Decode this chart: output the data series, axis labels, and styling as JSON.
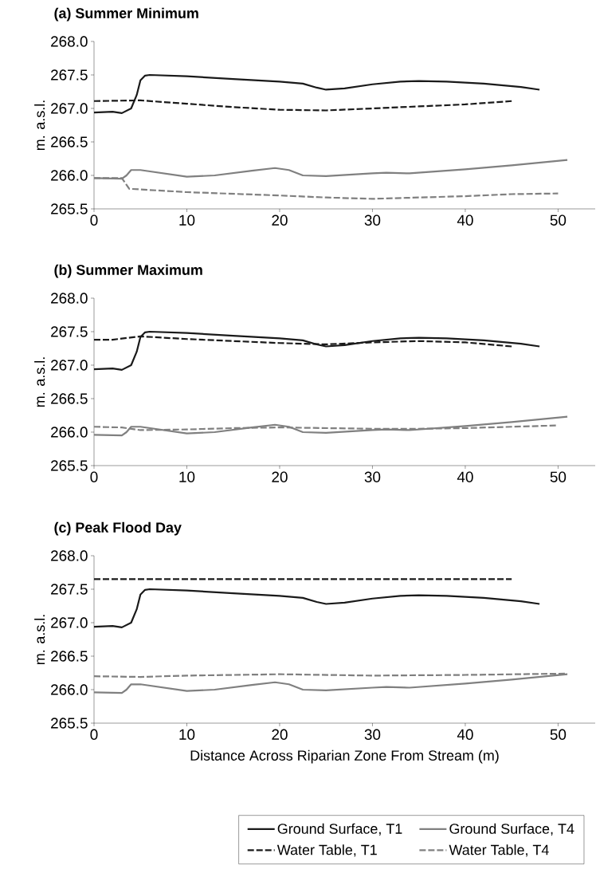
{
  "chart_data": [
    {
      "type": "line",
      "title": "(a) Summer Minimum",
      "ylabel": "m. a.s.l.",
      "xlim": [
        0,
        54
      ],
      "ylim": [
        265.5,
        268
      ],
      "xticks": [
        0,
        10,
        20,
        30,
        40,
        50
      ],
      "yticks": [
        {
          "value": 265.5,
          "label": "265.5"
        },
        {
          "value": 266,
          "label": "266.0"
        },
        {
          "value": 266.5,
          "label": "266.5"
        },
        {
          "value": 267,
          "label": "267.0"
        },
        {
          "value": 267.5,
          "label": "267.5"
        },
        {
          "value": 268,
          "label": "268.0"
        }
      ],
      "grid": false,
      "marker": "none",
      "series": [
        {
          "color": "#1a1a1a",
          "line_style": "solid",
          "x": [
            0,
            2,
            3,
            4,
            4.6,
            5,
            5.5,
            6,
            10,
            15,
            20,
            22.5,
            24,
            25,
            27,
            30,
            33,
            35,
            38,
            42,
            46,
            48
          ],
          "values": [
            266.94,
            266.95,
            266.93,
            267.0,
            267.2,
            267.42,
            267.49,
            267.5,
            267.48,
            267.44,
            267.4,
            267.37,
            267.31,
            267.28,
            267.3,
            267.36,
            267.4,
            267.41,
            267.4,
            267.37,
            267.32,
            267.28
          ]
        },
        {
          "color": "#808080",
          "line_style": "solid",
          "x": [
            0,
            3,
            3.5,
            4,
            5,
            7,
            10,
            13,
            17,
            19.5,
            21,
            22.5,
            25,
            30,
            31.5,
            34,
            40,
            45,
            51
          ],
          "values": [
            265.96,
            265.95,
            266.0,
            266.08,
            266.08,
            266.04,
            265.98,
            266.0,
            266.07,
            266.11,
            266.08,
            266.0,
            265.99,
            266.03,
            266.04,
            266.03,
            266.09,
            266.15,
            266.23
          ]
        },
        {
          "color": "#1a1a1a",
          "line_style": "dashed",
          "x": [
            0,
            5,
            10,
            15,
            20,
            25,
            30,
            35,
            40,
            45
          ],
          "values": [
            267.11,
            267.12,
            267.07,
            267.02,
            266.98,
            266.97,
            267.0,
            267.03,
            267.06,
            267.11
          ]
        },
        {
          "color": "#808080",
          "line_style": "dashed",
          "x": [
            0,
            3,
            3.3,
            3.8,
            10,
            20,
            25,
            30,
            35,
            40,
            45,
            50
          ],
          "values": [
            265.96,
            265.96,
            265.9,
            265.8,
            265.75,
            265.7,
            265.67,
            265.65,
            265.67,
            265.69,
            265.72,
            265.73
          ]
        }
      ]
    },
    {
      "type": "line",
      "title": "(b) Summer Maximum",
      "ylabel": "m. a.s.l.",
      "xlim": [
        0,
        54
      ],
      "ylim": [
        265.5,
        268
      ],
      "xticks": [
        0,
        10,
        20,
        30,
        40,
        50
      ],
      "yticks": [
        {
          "value": 265.5,
          "label": "265.5"
        },
        {
          "value": 266,
          "label": "266.0"
        },
        {
          "value": 266.5,
          "label": "266.5"
        },
        {
          "value": 267,
          "label": "267.0"
        },
        {
          "value": 267.5,
          "label": "267.5"
        },
        {
          "value": 268,
          "label": "268.0"
        }
      ],
      "grid": false,
      "marker": "none",
      "series": [
        {
          "color": "#1a1a1a",
          "line_style": "solid",
          "x": [
            0,
            2,
            3,
            4,
            4.6,
            5,
            5.5,
            6,
            10,
            15,
            20,
            22.5,
            24,
            25,
            27,
            30,
            33,
            35,
            38,
            42,
            46,
            48
          ],
          "values": [
            266.94,
            266.95,
            266.93,
            267.0,
            267.2,
            267.42,
            267.49,
            267.5,
            267.48,
            267.44,
            267.4,
            267.37,
            267.31,
            267.28,
            267.3,
            267.36,
            267.4,
            267.41,
            267.4,
            267.37,
            267.32,
            267.28
          ]
        },
        {
          "color": "#808080",
          "line_style": "solid",
          "x": [
            0,
            3,
            3.5,
            4,
            5,
            7,
            10,
            13,
            17,
            19.5,
            21,
            22.5,
            25,
            30,
            31.5,
            34,
            40,
            45,
            51
          ],
          "values": [
            265.96,
            265.95,
            266.0,
            266.08,
            266.08,
            266.04,
            265.98,
            266.0,
            266.07,
            266.11,
            266.08,
            266.0,
            265.99,
            266.03,
            266.04,
            266.03,
            266.09,
            266.15,
            266.23
          ]
        },
        {
          "color": "#1a1a1a",
          "line_style": "dashed",
          "x": [
            0,
            2,
            5,
            10,
            15,
            20,
            25,
            30,
            35,
            40,
            45
          ],
          "values": [
            267.38,
            267.38,
            267.43,
            267.39,
            267.36,
            267.33,
            267.31,
            267.34,
            267.36,
            267.34,
            267.28
          ]
        },
        {
          "color": "#808080",
          "line_style": "dashed",
          "x": [
            0,
            3,
            5,
            10,
            15,
            20,
            25,
            30,
            35,
            40,
            45,
            50
          ],
          "values": [
            266.08,
            266.07,
            266.03,
            266.04,
            266.06,
            266.07,
            266.06,
            266.05,
            266.05,
            266.06,
            266.08,
            266.1
          ]
        }
      ]
    },
    {
      "type": "line",
      "title": "(c) Peak Flood Day",
      "xlabel": "Distance Across Riparian Zone From Stream (m)",
      "ylabel": "m. a.s.l.",
      "xlim": [
        0,
        54
      ],
      "ylim": [
        265.5,
        268
      ],
      "xticks": [
        0,
        10,
        20,
        30,
        40,
        50
      ],
      "yticks": [
        {
          "value": 265.5,
          "label": "265.5"
        },
        {
          "value": 266,
          "label": "266.0"
        },
        {
          "value": 266.5,
          "label": "266.5"
        },
        {
          "value": 267,
          "label": "267.0"
        },
        {
          "value": 267.5,
          "label": "267.5"
        },
        {
          "value": 268,
          "label": "268.0"
        }
      ],
      "grid": false,
      "marker": "none",
      "legend": "bottom",
      "series": [
        {
          "name": "Ground Surface, T1",
          "color": "#1a1a1a",
          "line_style": "solid",
          "x": [
            0,
            2,
            3,
            4,
            4.6,
            5,
            5.5,
            6,
            10,
            15,
            20,
            22.5,
            24,
            25,
            27,
            30,
            33,
            35,
            38,
            42,
            46,
            48
          ],
          "values": [
            266.94,
            266.95,
            266.93,
            267.0,
            267.2,
            267.42,
            267.49,
            267.5,
            267.48,
            267.44,
            267.4,
            267.37,
            267.31,
            267.28,
            267.3,
            267.36,
            267.4,
            267.41,
            267.4,
            267.37,
            267.32,
            267.28
          ]
        },
        {
          "name": "Ground Surface, T4",
          "color": "#808080",
          "line_style": "solid",
          "x": [
            0,
            3,
            3.5,
            4,
            5,
            7,
            10,
            13,
            17,
            19.5,
            21,
            22.5,
            25,
            30,
            31.5,
            34,
            40,
            45,
            51
          ],
          "values": [
            265.96,
            265.95,
            266.0,
            266.08,
            266.08,
            266.04,
            265.98,
            266.0,
            266.07,
            266.11,
            266.08,
            266.0,
            265.99,
            266.03,
            266.04,
            266.03,
            266.09,
            266.15,
            266.23
          ]
        },
        {
          "name": "Water Table, T1",
          "color": "#1a1a1a",
          "line_style": "dashed",
          "x": [
            0,
            10,
            20,
            30,
            45
          ],
          "values": [
            267.65,
            267.65,
            267.65,
            267.65,
            267.65
          ]
        },
        {
          "name": "Water Table, T4",
          "color": "#808080",
          "line_style": "dashed",
          "x": [
            0,
            5,
            10,
            20,
            30,
            40,
            51
          ],
          "values": [
            266.2,
            266.19,
            266.21,
            266.23,
            266.21,
            266.22,
            266.24
          ]
        }
      ]
    }
  ]
}
